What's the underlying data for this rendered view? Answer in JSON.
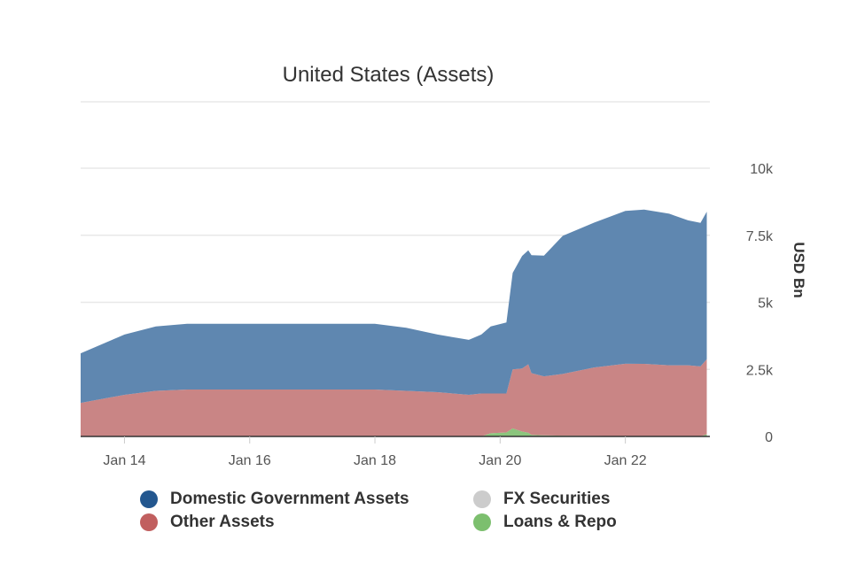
{
  "chart_data": {
    "type": "area",
    "stacked": true,
    "title": "United States (Assets)",
    "xlabel": "",
    "ylabel": "USD Bn",
    "ylim": [
      0,
      10000
    ],
    "xlim": [
      2013.3,
      2023.35
    ],
    "y_ticks": [
      {
        "value": 0,
        "label": "0"
      },
      {
        "value": 2500,
        "label": "2.5k"
      },
      {
        "value": 5000,
        "label": "5k"
      },
      {
        "value": 7500,
        "label": "7.5k"
      },
      {
        "value": 10000,
        "label": "10k"
      }
    ],
    "x_ticks": [
      {
        "value": 2014,
        "label": "Jan 14"
      },
      {
        "value": 2016,
        "label": "Jan 16"
      },
      {
        "value": 2018,
        "label": "Jan 18"
      },
      {
        "value": 2020,
        "label": "Jan 20"
      },
      {
        "value": 2022,
        "label": "Jan 22"
      }
    ],
    "x": [
      2013.3,
      2014.0,
      2014.5,
      2015.0,
      2016.0,
      2017.0,
      2018.0,
      2018.5,
      2019.0,
      2019.5,
      2019.7,
      2019.85,
      2020.1,
      2020.2,
      2020.35,
      2020.45,
      2020.5,
      2020.7,
      2021.0,
      2021.5,
      2022.0,
      2022.3,
      2022.7,
      2023.0,
      2023.2,
      2023.3
    ],
    "series": [
      {
        "name": "Loans & Repo",
        "color": "#8bc57d",
        "values": [
          0,
          0,
          0,
          0,
          0,
          0,
          0,
          0,
          0,
          0,
          0,
          120,
          150,
          300,
          180,
          140,
          60,
          40,
          30,
          20,
          10,
          5,
          5,
          5,
          10,
          80
        ]
      },
      {
        "name": "FX Securities",
        "color": "#c8c8c8",
        "values": [
          0,
          0,
          0,
          0,
          0,
          0,
          0,
          0,
          0,
          0,
          0,
          0,
          0,
          0,
          0,
          0,
          0,
          0,
          0,
          0,
          0,
          0,
          0,
          0,
          0,
          0
        ]
      },
      {
        "name": "Other Assets",
        "color": "#c98585",
        "values": [
          1250,
          1550,
          1700,
          1750,
          1750,
          1750,
          1750,
          1700,
          1650,
          1550,
          1600,
          1480,
          1450,
          2200,
          2350,
          2550,
          2300,
          2200,
          2300,
          2550,
          2700,
          2700,
          2650,
          2650,
          2600,
          2800
        ]
      },
      {
        "name": "Domestic Government Assets",
        "color": "#5f87b0",
        "values": [
          1850,
          2250,
          2400,
          2450,
          2450,
          2450,
          2450,
          2350,
          2150,
          2050,
          2200,
          2500,
          2650,
          3600,
          4200,
          4250,
          4400,
          4500,
          5150,
          5400,
          5700,
          5750,
          5650,
          5400,
          5350,
          5500
        ]
      }
    ],
    "legend": [
      {
        "label": "Domestic Government Assets",
        "color": "#23578f"
      },
      {
        "label": "FX Securities",
        "color": "#cccccc"
      },
      {
        "label": "Other Assets",
        "color": "#c15f5f"
      },
      {
        "label": "Loans & Repo",
        "color": "#7cbf6e"
      }
    ]
  }
}
